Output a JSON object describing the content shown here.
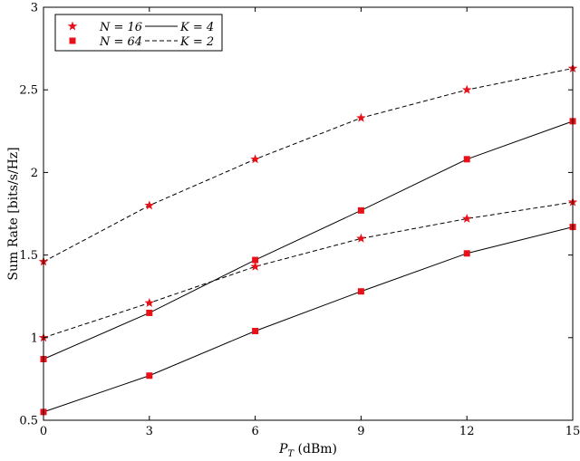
{
  "chart_data": {
    "type": "line",
    "xlabel": "P_T (dBm)",
    "xlabel_main": "P",
    "xlabel_sub": "T",
    "xlabel_unit": " (dBm)",
    "ylabel": "Sum Rate [bits/s/Hz]",
    "xlim": [
      0,
      15
    ],
    "ylim": [
      0.5,
      3
    ],
    "xticks": [
      0,
      3,
      6,
      9,
      12,
      15
    ],
    "yticks": [
      0.5,
      1,
      1.5,
      2,
      2.5,
      3
    ],
    "ytick_labels": [
      "0.5",
      "1",
      "1.5",
      "2",
      "2.5",
      "3"
    ],
    "grid": false,
    "legend_position": "top-left",
    "legend": {
      "marker_entries": [
        {
          "label": "N = 16",
          "marker": "star"
        },
        {
          "label": "N = 64",
          "marker": "square"
        }
      ],
      "line_entries": [
        {
          "label": "K = 4",
          "style": "solid"
        },
        {
          "label": "K = 2",
          "style": "dashed"
        }
      ]
    },
    "x": [
      0,
      3,
      6,
      9,
      12,
      15
    ],
    "series": [
      {
        "marker": "star",
        "line": "dashed",
        "values": [
          1.46,
          1.8,
          2.08,
          2.33,
          2.5,
          2.63
        ]
      },
      {
        "marker": "square",
        "line": "solid",
        "values": [
          0.87,
          1.15,
          1.47,
          1.77,
          2.08,
          2.31
        ]
      },
      {
        "marker": "star",
        "line": "dashed",
        "values": [
          1.0,
          1.21,
          1.43,
          1.6,
          1.72,
          1.82
        ]
      },
      {
        "marker": "square",
        "line": "solid",
        "values": [
          0.55,
          0.77,
          1.04,
          1.28,
          1.51,
          1.67
        ]
      }
    ],
    "colors": {
      "marker": "#e8111a",
      "line": "#000000",
      "axes": "#000000"
    }
  }
}
